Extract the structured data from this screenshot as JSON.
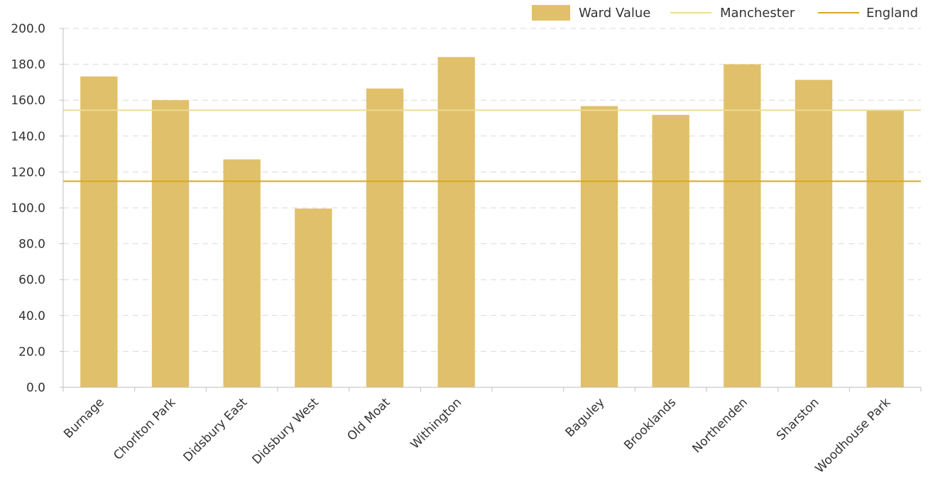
{
  "chart_data": {
    "type": "bar",
    "categories": [
      "Burnage",
      "Chorlton Park",
      "Didsbury East",
      "Didsbury West",
      "Old Moat",
      "Withington",
      "",
      "Baguley",
      "Brooklands",
      "Northenden",
      "Sharston",
      "Woodhouse Park"
    ],
    "series": [
      {
        "name": "Ward Value",
        "values": [
          173.2,
          160.0,
          127.0,
          99.6,
          166.5,
          184.0,
          null,
          156.7,
          151.8,
          180.0,
          171.3,
          154.2
        ]
      }
    ],
    "reference_lines": [
      {
        "name": "Manchester",
        "value": 154.4
      },
      {
        "name": "England",
        "value": 114.8
      }
    ],
    "legend": [
      "Ward Value",
      "Manchester",
      "England"
    ],
    "y_ticks": [
      "0.0",
      "20.0",
      "40.0",
      "60.0",
      "80.0",
      "100.0",
      "120.0",
      "140.0",
      "160.0",
      "180.0",
      "200.0"
    ],
    "ylim": [
      0,
      200
    ],
    "grid": true,
    "legend_position": "top-right",
    "colors": {
      "bar": "#e0c06a",
      "manchester": "#ecdc98",
      "england": "#d4aa20"
    }
  }
}
